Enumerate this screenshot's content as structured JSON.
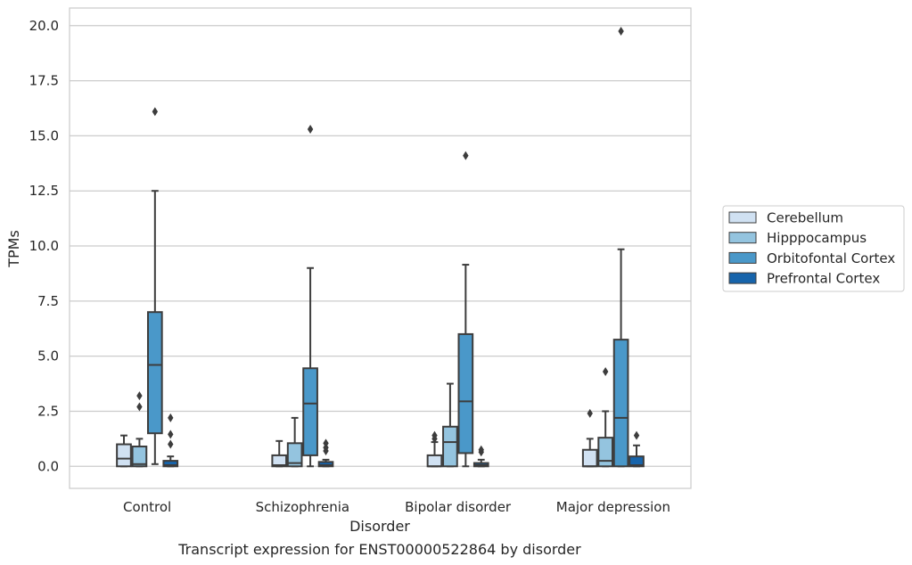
{
  "chart_data": {
    "type": "boxplot",
    "caption": "Transcript expression for ENST00000522864 by disorder",
    "xlabel": "Disorder",
    "ylabel": "TPMs",
    "ylim": [
      -1,
      20.8
    ],
    "yticks": [
      "0.0",
      "2.5",
      "5.0",
      "7.5",
      "10.0",
      "12.5",
      "15.0",
      "17.5",
      "20.0"
    ],
    "categories": [
      "Control",
      "Schizophrenia",
      "Bipolar disorder",
      "Major depression"
    ],
    "grid": "horizontal",
    "legend_position": "right",
    "series": [
      {
        "name": "Cerebellum",
        "color": "#d0e1f2",
        "boxes": [
          {
            "whislo": 0.0,
            "q1": 0.0,
            "med": 0.35,
            "q3": 1.0,
            "whishi": 1.4,
            "fliers": []
          },
          {
            "whislo": 0.0,
            "q1": 0.0,
            "med": 0.05,
            "q3": 0.5,
            "whishi": 1.15,
            "fliers": []
          },
          {
            "whislo": 0.0,
            "q1": 0.0,
            "med": 0.0,
            "q3": 0.5,
            "whishi": 1.1,
            "fliers": [
              1.25,
              1.4
            ]
          },
          {
            "whislo": 0.0,
            "q1": 0.0,
            "med": 0.0,
            "q3": 0.75,
            "whishi": 1.25,
            "fliers": [
              2.4
            ]
          }
        ]
      },
      {
        "name": "Hipppocampus",
        "color": "#94c4df",
        "boxes": [
          {
            "whislo": 0.0,
            "q1": 0.0,
            "med": 0.1,
            "q3": 0.9,
            "whishi": 1.25,
            "fliers": [
              2.7,
              3.2
            ]
          },
          {
            "whislo": 0.0,
            "q1": 0.0,
            "med": 0.15,
            "q3": 1.05,
            "whishi": 2.2,
            "fliers": []
          },
          {
            "whislo": 0.0,
            "q1": 0.0,
            "med": 1.1,
            "q3": 1.8,
            "whishi": 3.75,
            "fliers": []
          },
          {
            "whislo": 0.0,
            "q1": 0.0,
            "med": 0.25,
            "q3": 1.3,
            "whishi": 2.5,
            "fliers": [
              4.3
            ]
          }
        ]
      },
      {
        "name": "Orbitofontal Cortex",
        "color": "#4a98c9",
        "boxes": [
          {
            "whislo": 0.1,
            "q1": 1.5,
            "med": 4.6,
            "q3": 7.0,
            "whishi": 12.5,
            "fliers": [
              16.1
            ]
          },
          {
            "whislo": 0.0,
            "q1": 0.5,
            "med": 2.85,
            "q3": 4.45,
            "whishi": 9.0,
            "fliers": [
              15.3
            ]
          },
          {
            "whislo": 0.0,
            "q1": 0.6,
            "med": 2.95,
            "q3": 6.0,
            "whishi": 9.15,
            "fliers": [
              14.1
            ]
          },
          {
            "whislo": 0.0,
            "q1": 0.0,
            "med": 2.2,
            "q3": 5.75,
            "whishi": 9.85,
            "fliers": [
              19.75
            ]
          }
        ]
      },
      {
        "name": "Prefrontal Cortex",
        "color": "#1764ab",
        "boxes": [
          {
            "whislo": 0.0,
            "q1": 0.0,
            "med": 0.05,
            "q3": 0.25,
            "whishi": 0.45,
            "fliers": [
              1.0,
              1.45,
              2.2
            ]
          },
          {
            "whislo": 0.0,
            "q1": 0.0,
            "med": 0.05,
            "q3": 0.2,
            "whishi": 0.3,
            "fliers": [
              0.7,
              0.85,
              1.05
            ]
          },
          {
            "whislo": 0.0,
            "q1": 0.0,
            "med": 0.05,
            "q3": 0.15,
            "whishi": 0.3,
            "fliers": [
              0.65,
              0.75
            ]
          },
          {
            "whislo": 0.0,
            "q1": 0.0,
            "med": 0.05,
            "q3": 0.45,
            "whishi": 0.95,
            "fliers": [
              1.4
            ]
          }
        ]
      }
    ]
  }
}
